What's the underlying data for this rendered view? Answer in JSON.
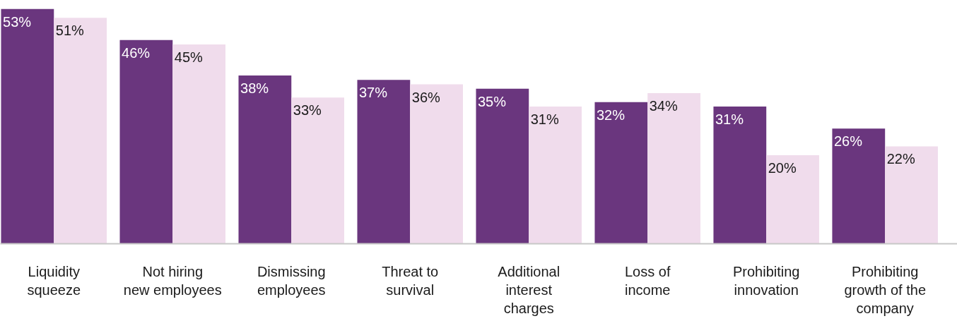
{
  "chart_data": {
    "type": "bar",
    "categories": [
      "Liquidity squeeze",
      "Not hiring new employees",
      "Dismissing employees",
      "Threat to survival",
      "Additional interest charges",
      "Loss of income",
      "Prohibiting innovation",
      "Prohibiting growth of the company"
    ],
    "series": [
      {
        "color": "#6a367e",
        "values": [
          53,
          46,
          38,
          37,
          35,
          32,
          31,
          26
        ],
        "value_labels": [
          "53%",
          "46%",
          "38%",
          "37%",
          "35%",
          "32%",
          "31%",
          "26%"
        ]
      },
      {
        "color": "#f0dcec",
        "values": [
          51,
          45,
          33,
          36,
          31,
          34,
          20,
          22
        ],
        "value_labels": [
          "51%",
          "45%",
          "33%",
          "36%",
          "31%",
          "34%",
          "20%",
          "22%"
        ]
      }
    ],
    "grid": false
  }
}
